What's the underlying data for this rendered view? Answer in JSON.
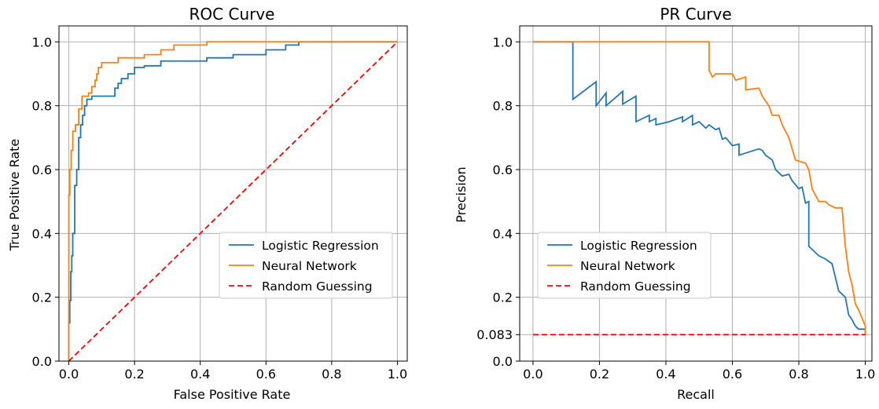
{
  "chart_data": [
    {
      "type": "line",
      "title": "ROC Curve",
      "xlabel": "False Positive Rate",
      "ylabel": "True Positive Rate",
      "xlim": [
        -0.03,
        1.03
      ],
      "ylim": [
        0,
        1.05
      ],
      "grid": true,
      "xticks": [
        0.0,
        0.2,
        0.4,
        0.6,
        0.8,
        1.0
      ],
      "xtick_labels": [
        "0.0",
        "0.2",
        "0.4",
        "0.6",
        "0.8",
        "1.0"
      ],
      "yticks": [
        0.0,
        0.2,
        0.4,
        0.6,
        0.8,
        1.0
      ],
      "ytick_labels": [
        "0.0",
        "0.2",
        "0.4",
        "0.6",
        "0.8",
        "1.0"
      ],
      "legend_position": "center-right",
      "series": [
        {
          "name": "Logistic Regression",
          "color": "#1f77b4",
          "style": "solid",
          "x": [
            0.0,
            0.0,
            0.003,
            0.003,
            0.006,
            0.006,
            0.009,
            0.009,
            0.012,
            0.012,
            0.018,
            0.018,
            0.024,
            0.024,
            0.03,
            0.03,
            0.036,
            0.036,
            0.042,
            0.042,
            0.048,
            0.048,
            0.055,
            0.055,
            0.07,
            0.07,
            0.14,
            0.14,
            0.15,
            0.15,
            0.16,
            0.16,
            0.18,
            0.18,
            0.2,
            0.2,
            0.23,
            0.23,
            0.28,
            0.28,
            0.42,
            0.42,
            0.5,
            0.5,
            0.6,
            0.6,
            0.66,
            0.66,
            0.7,
            0.7,
            1.0
          ],
          "y": [
            0.0,
            0.12,
            0.12,
            0.19,
            0.19,
            0.28,
            0.28,
            0.33,
            0.33,
            0.4,
            0.4,
            0.55,
            0.55,
            0.6,
            0.6,
            0.7,
            0.7,
            0.74,
            0.74,
            0.77,
            0.77,
            0.8,
            0.8,
            0.82,
            0.82,
            0.83,
            0.83,
            0.855,
            0.855,
            0.87,
            0.87,
            0.885,
            0.885,
            0.9,
            0.9,
            0.92,
            0.92,
            0.925,
            0.925,
            0.94,
            0.94,
            0.95,
            0.95,
            0.96,
            0.96,
            0.975,
            0.975,
            0.99,
            0.99,
            1.0,
            1.0
          ]
        },
        {
          "name": "Neural Network",
          "color": "#ff7f0e",
          "style": "solid",
          "x": [
            0.0,
            0.0,
            0.003,
            0.003,
            0.007,
            0.007,
            0.012,
            0.012,
            0.02,
            0.02,
            0.03,
            0.03,
            0.04,
            0.04,
            0.05,
            0.05,
            0.06,
            0.06,
            0.07,
            0.07,
            0.08,
            0.08,
            0.085,
            0.085,
            0.09,
            0.09,
            0.1,
            0.1,
            0.15,
            0.15,
            0.23,
            0.23,
            0.28,
            0.28,
            0.32,
            0.32,
            0.42,
            0.42,
            1.0
          ],
          "y": [
            0.0,
            0.52,
            0.52,
            0.6,
            0.6,
            0.66,
            0.66,
            0.72,
            0.72,
            0.74,
            0.74,
            0.79,
            0.79,
            0.83,
            0.83,
            0.83,
            0.83,
            0.84,
            0.84,
            0.86,
            0.86,
            0.88,
            0.88,
            0.9,
            0.9,
            0.92,
            0.92,
            0.935,
            0.935,
            0.95,
            0.95,
            0.96,
            0.96,
            0.975,
            0.975,
            0.99,
            0.99,
            1.0,
            1.0
          ]
        },
        {
          "name": "Random Guessing",
          "color": "#ff0000",
          "style": "dashed",
          "x": [
            0.0,
            1.0
          ],
          "y": [
            0.0,
            1.0
          ]
        }
      ]
    },
    {
      "type": "line",
      "title": "PR Curve",
      "xlabel": "Recall",
      "ylabel": "Precision",
      "xlim": [
        -0.04,
        1.02
      ],
      "ylim": [
        0,
        1.05
      ],
      "grid": true,
      "xticks": [
        0.0,
        0.2,
        0.4,
        0.6,
        0.8,
        1.0
      ],
      "xtick_labels": [
        "0.0",
        "0.2",
        "0.4",
        "0.6",
        "0.8",
        "1.0"
      ],
      "yticks": [
        0.0,
        0.083,
        0.2,
        0.4,
        0.6,
        0.8,
        1.0
      ],
      "ytick_labels": [
        "0.0",
        "0.083",
        "0.2",
        "0.4",
        "0.6",
        "0.8",
        "1.0"
      ],
      "legend_position": "center-left",
      "series": [
        {
          "name": "Logistic Regression",
          "color": "#1f77b4",
          "style": "solid",
          "x": [
            0.0,
            0.12,
            0.12,
            0.12,
            0.19,
            0.19,
            0.22,
            0.22,
            0.27,
            0.27,
            0.31,
            0.31,
            0.35,
            0.35,
            0.37,
            0.37,
            0.41,
            0.41,
            0.45,
            0.45,
            0.48,
            0.48,
            0.5,
            0.52,
            0.53,
            0.55,
            0.56,
            0.57,
            0.58,
            0.6,
            0.62,
            0.62,
            0.68,
            0.69,
            0.7,
            0.72,
            0.73,
            0.74,
            0.75,
            0.77,
            0.78,
            0.8,
            0.81,
            0.82,
            0.83,
            0.83,
            0.85,
            0.86,
            0.88,
            0.9,
            0.92,
            0.94,
            0.95,
            0.96,
            0.97,
            0.98,
            1.0,
            1.0
          ],
          "y": [
            1.0,
            1.0,
            1.0,
            0.82,
            0.875,
            0.8,
            0.84,
            0.8,
            0.845,
            0.805,
            0.83,
            0.75,
            0.77,
            0.75,
            0.76,
            0.74,
            0.75,
            0.75,
            0.765,
            0.75,
            0.77,
            0.74,
            0.75,
            0.73,
            0.74,
            0.725,
            0.73,
            0.695,
            0.7,
            0.675,
            0.68,
            0.645,
            0.665,
            0.66,
            0.645,
            0.63,
            0.6,
            0.59,
            0.58,
            0.585,
            0.565,
            0.54,
            0.545,
            0.495,
            0.5,
            0.36,
            0.34,
            0.33,
            0.32,
            0.305,
            0.22,
            0.2,
            0.145,
            0.13,
            0.11,
            0.1,
            0.1,
            0.083
          ]
        },
        {
          "name": "Neural Network",
          "color": "#ff7f0e",
          "style": "solid",
          "x": [
            0.0,
            0.53,
            0.53,
            0.54,
            0.55,
            0.6,
            0.61,
            0.64,
            0.64,
            0.68,
            0.69,
            0.71,
            0.72,
            0.74,
            0.75,
            0.77,
            0.79,
            0.82,
            0.83,
            0.84,
            0.86,
            0.88,
            0.89,
            0.9,
            0.91,
            0.93,
            0.94,
            0.95,
            0.96,
            0.97,
            0.98,
            1.0,
            1.0
          ],
          "y": [
            1.0,
            1.0,
            0.91,
            0.89,
            0.9,
            0.9,
            0.88,
            0.89,
            0.85,
            0.855,
            0.83,
            0.8,
            0.77,
            0.77,
            0.74,
            0.7,
            0.63,
            0.62,
            0.6,
            0.54,
            0.5,
            0.5,
            0.49,
            0.485,
            0.48,
            0.48,
            0.36,
            0.28,
            0.24,
            0.18,
            0.16,
            0.11,
            0.083
          ]
        },
        {
          "name": "Random Guessing",
          "color": "#ff0000",
          "style": "dashed",
          "x": [
            0.0,
            1.0
          ],
          "y": [
            0.083,
            0.083
          ]
        }
      ]
    }
  ]
}
